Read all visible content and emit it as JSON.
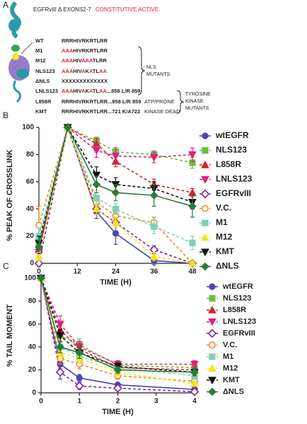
{
  "diagram": {
    "panel_label": "A",
    "title": "EGFRvIII Δ EXONS2-7",
    "title_note": "CONSTITUTIVE ACTIVE",
    "note_color": "#e8202a",
    "rows": [
      {
        "name": "WT",
        "segments": [
          {
            "text": "RRRHIVRKRTLRR",
            "color": "#222"
          }
        ]
      },
      {
        "name": "M1",
        "segments": [
          {
            "text": "AAA",
            "color": "#e8202a"
          },
          {
            "text": "HIVRKRTLRR",
            "color": "#222"
          }
        ]
      },
      {
        "name": "M12",
        "segments": [
          {
            "text": "AAA",
            "color": "#e8202a"
          },
          {
            "text": "HIV",
            "color": "#222"
          },
          {
            "text": "AAA",
            "color": "#e8202a"
          },
          {
            "text": "TLRR",
            "color": "#222"
          }
        ]
      },
      {
        "name": "NLS123",
        "segments": [
          {
            "text": "AAA",
            "color": "#e8202a"
          },
          {
            "text": "HIV",
            "color": "#222"
          },
          {
            "text": "A",
            "color": "#e8202a"
          },
          {
            "text": "K",
            "color": "#222"
          },
          {
            "text": "A",
            "color": "#e8202a"
          },
          {
            "text": "TL",
            "color": "#222"
          },
          {
            "text": "AA",
            "color": "#e8202a"
          }
        ]
      },
      {
        "name": "ΔNLS",
        "segments": [
          {
            "text": "XXXXXXXXXXXXX",
            "color": "#222"
          }
        ]
      },
      {
        "name": "LNLS123",
        "segments": [
          {
            "text": "AAA",
            "color": "#e8202a"
          },
          {
            "text": "HIV",
            "color": "#222"
          },
          {
            "text": "A",
            "color": "#e8202a"
          },
          {
            "text": "K",
            "color": "#222"
          },
          {
            "text": "A",
            "color": "#e8202a"
          },
          {
            "text": "TL",
            "color": "#222"
          },
          {
            "text": "AA",
            "color": "#e8202a"
          },
          {
            "text": "...858 L/R 859",
            "color": "#222"
          }
        ]
      },
      {
        "name": "L858R",
        "segments": [
          {
            "text": "RRRHIVRKRTLRR...858 L/R 859",
            "color": "#222"
          }
        ],
        "note": "ATP/PRONE"
      },
      {
        "name": "KMT",
        "segments": [
          {
            "text": "RRRHIVRKRTLRR...721 K/A722",
            "color": "#222"
          }
        ],
        "note": "KINASE DEAD"
      }
    ],
    "groups": [
      {
        "lines": [
          "NLS",
          "MUTANTS"
        ]
      },
      {
        "lines": [
          "TYROSINE",
          "KINASE",
          "MUTANTS"
        ]
      }
    ]
  },
  "chart_data": [
    {
      "type": "line",
      "panel_label": "B",
      "x_label": "TIME (H)",
      "y_label": "% PEAK OF CROSSLINK",
      "x": [
        0,
        9,
        18,
        24,
        36,
        48
      ],
      "xlim": [
        0,
        48
      ],
      "xticks": [
        0,
        12,
        24,
        36,
        48
      ],
      "ylim": [
        0,
        100
      ],
      "yticks": [
        0,
        20,
        40,
        60,
        80,
        100
      ],
      "series": [
        {
          "name": "wtEGFR",
          "color": "#4a45b0",
          "marker": "circle",
          "dashed": false,
          "values": [
            10,
            100,
            38,
            22,
            2,
            0
          ],
          "errors": [
            6,
            0,
            5,
            8,
            3,
            0
          ]
        },
        {
          "name": "NLS123",
          "color": "#6cbf3a",
          "marker": "square",
          "dashed": true,
          "values": [
            15,
            100,
            90,
            82,
            80,
            74
          ],
          "errors": [
            5,
            0,
            3,
            3,
            3,
            4
          ]
        },
        {
          "name": "L858R",
          "color": "#d7202a",
          "marker": "triangle",
          "dashed": true,
          "values": [
            10,
            100,
            88,
            75,
            58,
            52
          ],
          "errors": [
            5,
            0,
            4,
            4,
            4,
            3
          ]
        },
        {
          "name": "LNLS123",
          "color": "#e0207f",
          "marker": "triangle-down",
          "dashed": true,
          "values": [
            8,
            100,
            83,
            79,
            78,
            80
          ],
          "errors": [
            5,
            0,
            5,
            6,
            4,
            5
          ]
        },
        {
          "name": "EGFRvIII",
          "color": "#7a2a9c",
          "marker": "diamond-open",
          "dashed": true,
          "values": [
            0,
            100,
            40,
            30,
            10,
            0
          ],
          "errors": [
            2,
            0,
            4,
            4,
            3,
            0
          ]
        },
        {
          "name": "V.C.",
          "color": "#f08a24",
          "marker": "circle-open",
          "dashed": true,
          "values": [
            28,
            100,
            45,
            35,
            30,
            0
          ],
          "errors": [
            14,
            0,
            4,
            4,
            4,
            0
          ]
        },
        {
          "name": "M1",
          "color": "#7fcfba",
          "marker": "square",
          "dashed": true,
          "values": [
            20,
            100,
            48,
            40,
            27,
            15
          ],
          "errors": [
            6,
            0,
            4,
            4,
            5,
            5
          ]
        },
        {
          "name": "M12",
          "color": "#f2e524",
          "marker": "triangle",
          "dashed": true,
          "values": [
            5,
            100,
            40,
            30,
            5,
            0
          ],
          "errors": [
            3,
            0,
            4,
            4,
            3,
            0
          ]
        },
        {
          "name": "KMT",
          "color": "#111111",
          "marker": "triangle-down",
          "dashed": true,
          "values": [
            15,
            100,
            65,
            58,
            55,
            45
          ],
          "errors": [
            5,
            0,
            6,
            5,
            5,
            5
          ]
        },
        {
          "name": "ΔNLS",
          "color": "#2a7a3a",
          "marker": "diamond",
          "dashed": false,
          "values": [
            12,
            100,
            58,
            52,
            50,
            42
          ],
          "errors": [
            5,
            0,
            6,
            6,
            8,
            8
          ]
        }
      ]
    },
    {
      "type": "line",
      "panel_label": "C",
      "x_label": "TIME (H)",
      "y_label": "% TAIL MOMENT",
      "x": [
        0,
        0.5,
        1,
        2,
        4
      ],
      "xlim": [
        0,
        4
      ],
      "xticks": [
        0,
        1,
        2,
        3,
        4
      ],
      "ylim": [
        0,
        100
      ],
      "yticks": [
        0,
        20,
        40,
        60,
        80,
        100
      ],
      "series": [
        {
          "name": "wtEGFR",
          "color": "#4a45b0",
          "marker": "circle",
          "dashed": false,
          "values": [
            100,
            25,
            13,
            7,
            3
          ],
          "errors": [
            0,
            4,
            3,
            2,
            2
          ]
        },
        {
          "name": "NLS123",
          "color": "#6cbf3a",
          "marker": "square",
          "dashed": true,
          "values": [
            100,
            50,
            42,
            24,
            22
          ],
          "errors": [
            0,
            6,
            5,
            3,
            3
          ]
        },
        {
          "name": "L858R",
          "color": "#d7202a",
          "marker": "triangle",
          "dashed": true,
          "values": [
            100,
            55,
            38,
            22,
            20
          ],
          "errors": [
            0,
            6,
            5,
            3,
            3
          ]
        },
        {
          "name": "LNLS123",
          "color": "#e0207f",
          "marker": "triangle-down",
          "dashed": true,
          "values": [
            100,
            60,
            40,
            25,
            25
          ],
          "errors": [
            0,
            7,
            5,
            3,
            3
          ]
        },
        {
          "name": "EGFRvIII",
          "color": "#7a2a9c",
          "marker": "diamond-open",
          "dashed": true,
          "values": [
            100,
            18,
            6,
            4,
            1
          ],
          "errors": [
            0,
            6,
            3,
            2,
            1
          ]
        },
        {
          "name": "V.C.",
          "color": "#f08a24",
          "marker": "circle-open",
          "dashed": true,
          "values": [
            100,
            30,
            25,
            15,
            10
          ],
          "errors": [
            0,
            5,
            4,
            3,
            3
          ]
        },
        {
          "name": "M1",
          "color": "#7fcfba",
          "marker": "square",
          "dashed": true,
          "values": [
            100,
            40,
            32,
            22,
            15
          ],
          "errors": [
            0,
            5,
            4,
            3,
            3
          ]
        },
        {
          "name": "M12",
          "color": "#f2e524",
          "marker": "triangle",
          "dashed": true,
          "values": [
            100,
            35,
            30,
            18,
            8
          ],
          "errors": [
            0,
            5,
            4,
            3,
            2
          ]
        },
        {
          "name": "KMT",
          "color": "#111111",
          "marker": "triangle-down",
          "dashed": true,
          "values": [
            100,
            50,
            35,
            23,
            18
          ],
          "errors": [
            0,
            5,
            5,
            3,
            3
          ]
        },
        {
          "name": "ΔNLS",
          "color": "#2a7a3a",
          "marker": "diamond",
          "dashed": false,
          "values": [
            100,
            40,
            35,
            20,
            18
          ],
          "errors": [
            0,
            5,
            5,
            3,
            3
          ]
        }
      ]
    }
  ]
}
